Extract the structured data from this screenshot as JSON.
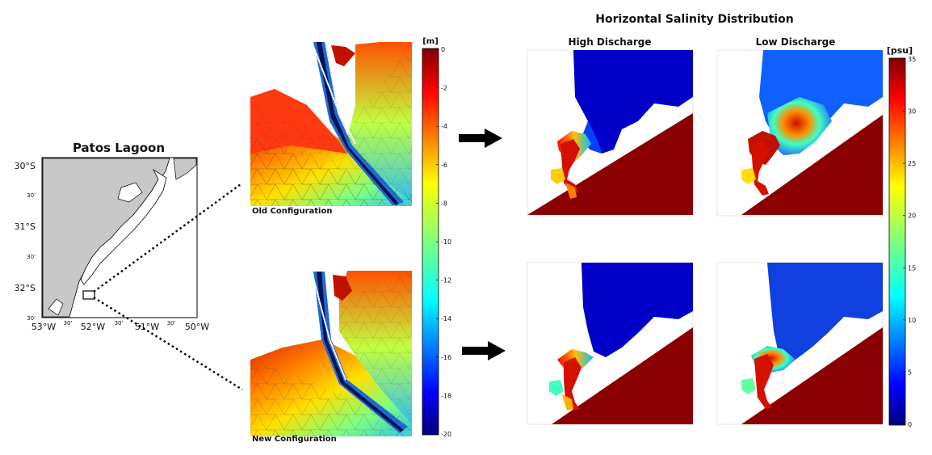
{
  "figure_title": "Horizontal Salinity Distribution",
  "map": {
    "title": "Patos Lagoon",
    "lat_labels": [
      "30°S",
      "30'",
      "31°S",
      "30'",
      "32°S",
      "30'"
    ],
    "lon_labels": [
      "53°W",
      "30'",
      "52°W",
      "30'",
      "51°W",
      "30'",
      "50°W"
    ]
  },
  "mesh": {
    "old_label": "Old Configuration",
    "new_label": "New Configuration"
  },
  "depth_colorbar": {
    "unit": "[m]",
    "ticks": [
      "0",
      "-2",
      "-4",
      "-6",
      "-8",
      "-10",
      "-12",
      "-14",
      "-16",
      "-18",
      "-20"
    ]
  },
  "salinity": {
    "columns": [
      "High Discharge",
      "Low Discharge"
    ],
    "colorbar_unit": "[psu]",
    "colorbar_ticks": [
      "35",
      "30",
      "25",
      "20",
      "15",
      "10",
      "5",
      "0"
    ]
  },
  "colors": {
    "jet": [
      "#00007f",
      "#0000ff",
      "#007fff",
      "#00ffff",
      "#7fff7f",
      "#ffff00",
      "#ff7f00",
      "#ff0000",
      "#7f0000"
    ],
    "land": "#c8c8c8",
    "ocean_salty": "#8b0000"
  }
}
